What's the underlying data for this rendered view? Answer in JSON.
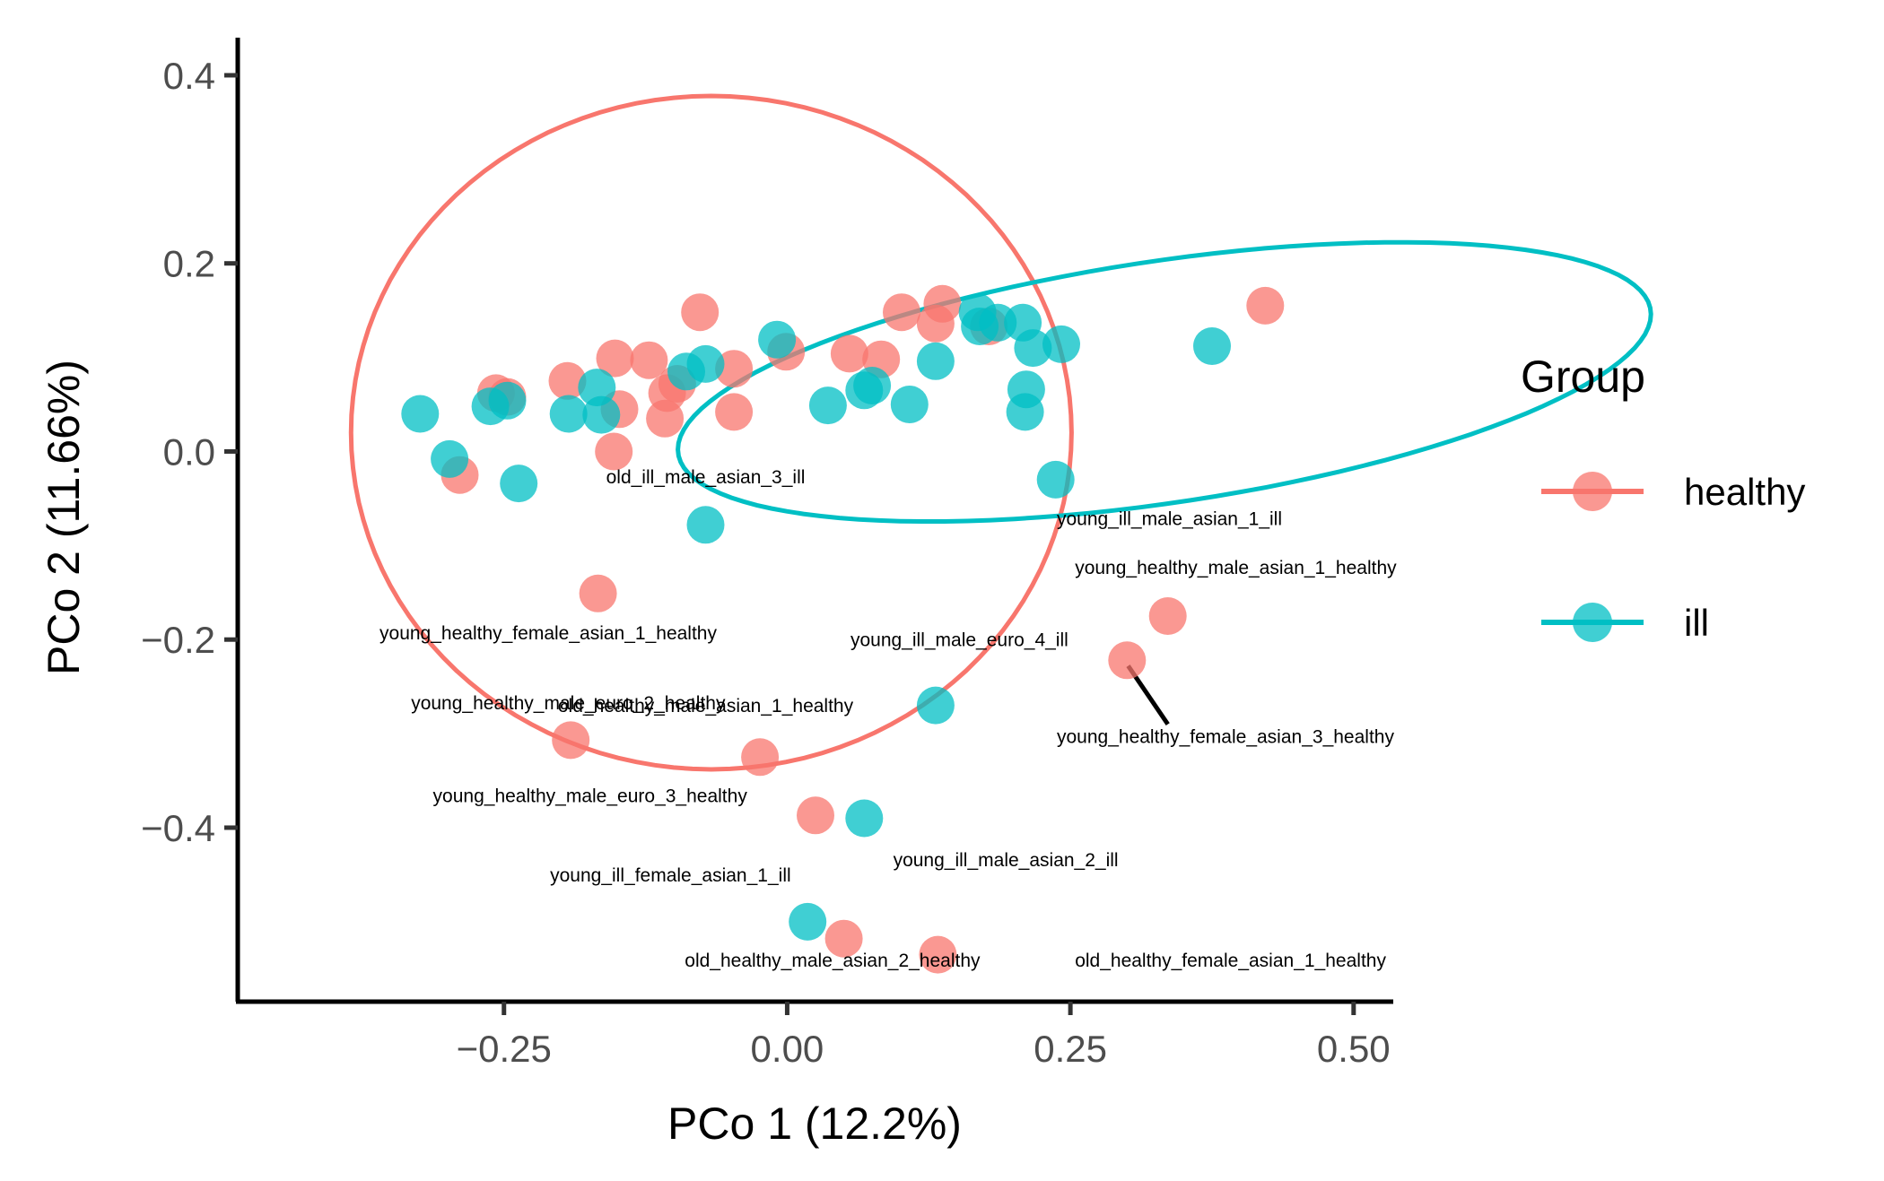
{
  "chart_data": {
    "type": "scatter",
    "title": "",
    "xlabel": "PCo 1 (12.2%)",
    "ylabel": "PCo 2 (11.66%)",
    "xlim": [
      -0.485,
      0.535
    ],
    "ylim": [
      -0.585,
      0.44
    ],
    "x_ticks": [
      {
        "value": -0.25,
        "label": "−0.25"
      },
      {
        "value": 0.0,
        "label": "0.00"
      },
      {
        "value": 0.25,
        "label": "0.25"
      },
      {
        "value": 0.5,
        "label": "0.50"
      }
    ],
    "y_ticks": [
      {
        "value": 0.4,
        "label": "0.4"
      },
      {
        "value": 0.2,
        "label": "0.2"
      },
      {
        "value": 0.0,
        "label": "0.0"
      },
      {
        "value": -0.2,
        "label": "−0.2"
      },
      {
        "value": -0.4,
        "label": "−0.4"
      }
    ],
    "grid": false,
    "legend": {
      "title": "Group",
      "position": "right",
      "entries": [
        {
          "name": "healthy",
          "color": "#F8766D"
        },
        {
          "name": "ill",
          "color": "#00BFC4"
        }
      ]
    },
    "series": [
      {
        "name": "healthy",
        "color": "#F8766D",
        "points": [
          [
            -0.257,
            0.062
          ],
          [
            -0.247,
            0.058
          ],
          [
            -0.194,
            0.075
          ],
          [
            -0.152,
            0.099
          ],
          [
            -0.148,
            0.045
          ],
          [
            -0.122,
            0.097
          ],
          [
            -0.108,
            0.035
          ],
          [
            -0.106,
            0.062
          ],
          [
            -0.097,
            0.072
          ],
          [
            -0.077,
            0.148
          ],
          [
            -0.047,
            0.088
          ],
          [
            -0.047,
            0.042
          ],
          [
            -0.153,
            0.0
          ],
          [
            -0.289,
            -0.025
          ],
          [
            -0.001,
            0.106
          ],
          [
            0.055,
            0.104
          ],
          [
            0.083,
            0.098
          ],
          [
            0.101,
            0.148
          ],
          [
            0.131,
            0.136
          ],
          [
            0.137,
            0.157
          ],
          [
            0.178,
            0.133
          ],
          [
            0.422,
            0.155
          ],
          [
            -0.167,
            -0.151
          ],
          [
            0.336,
            -0.175
          ],
          [
            0.3,
            -0.222
          ],
          [
            -0.191,
            -0.307
          ],
          [
            -0.024,
            -0.325
          ],
          [
            0.025,
            -0.387
          ],
          [
            0.05,
            -0.518
          ],
          [
            0.133,
            -0.535
          ]
        ],
        "ellipse": {
          "cx": -0.067,
          "cy": 0.02,
          "rx": 0.318,
          "ry": 0.358,
          "angle_deg": 0
        }
      },
      {
        "name": "ill",
        "color": "#00BFC4",
        "points": [
          [
            -0.324,
            0.04
          ],
          [
            -0.298,
            -0.008
          ],
          [
            -0.262,
            0.048
          ],
          [
            -0.247,
            0.054
          ],
          [
            -0.237,
            -0.034
          ],
          [
            -0.193,
            0.04
          ],
          [
            -0.168,
            0.068
          ],
          [
            -0.164,
            0.039
          ],
          [
            -0.089,
            0.085
          ],
          [
            -0.072,
            0.093
          ],
          [
            -0.009,
            0.119
          ],
          [
            0.036,
            0.049
          ],
          [
            0.068,
            0.065
          ],
          [
            0.075,
            0.07
          ],
          [
            0.108,
            0.05
          ],
          [
            0.131,
            0.096
          ],
          [
            0.168,
            0.148
          ],
          [
            0.17,
            0.133
          ],
          [
            0.186,
            0.137
          ],
          [
            0.208,
            0.137
          ],
          [
            0.211,
            0.066
          ],
          [
            0.21,
            0.042
          ],
          [
            0.217,
            0.11
          ],
          [
            0.242,
            0.114
          ],
          [
            0.375,
            0.112
          ],
          [
            0.237,
            -0.03
          ],
          [
            -0.072,
            -0.078
          ],
          [
            0.131,
            -0.27
          ],
          [
            0.068,
            -0.39
          ],
          [
            0.018,
            -0.5
          ]
        ],
        "ellipse": {
          "cx": 0.333,
          "cy": 0.074,
          "rx": 0.436,
          "ry": 0.128,
          "angle_deg": 10.4
        }
      }
    ],
    "annotations": [
      {
        "text": "old_ill_male_asian_3_ill",
        "x": -0.072,
        "y": -0.034,
        "anchor": "middle"
      },
      {
        "text": "young_ill_male_asian_1_ill",
        "x": 0.238,
        "y": -0.078,
        "anchor": "start"
      },
      {
        "text": "young_healthy_male_asian_1_healthy",
        "x": 0.254,
        "y": -0.13,
        "anchor": "start"
      },
      {
        "text": "young_healthy_female_asian_1_healthy",
        "x": -0.211,
        "y": -0.2,
        "anchor": "middle"
      },
      {
        "text": "young_ill_male_euro_4_ill",
        "x": 0.152,
        "y": -0.207,
        "anchor": "middle"
      },
      {
        "text": "young_healthy_male_euro_2_healthy",
        "x": -0.332,
        "y": -0.274,
        "anchor": "start"
      },
      {
        "text": "old_healthy_male_asian_1_healthy",
        "x": -0.072,
        "y": -0.277,
        "anchor": "middle"
      },
      {
        "text": "young_healthy_female_asian_3_healthy",
        "x": 0.238,
        "y": -0.31,
        "anchor": "start"
      },
      {
        "text": "young_healthy_male_euro_3_healthy",
        "x": -0.174,
        "y": -0.373,
        "anchor": "middle"
      },
      {
        "text": "young_ill_male_asian_2_ill",
        "x": 0.193,
        "y": -0.441,
        "anchor": "middle"
      },
      {
        "text": "young_ill_female_asian_1_ill",
        "x": -0.103,
        "y": -0.457,
        "anchor": "middle"
      },
      {
        "text": "old_healthy_male_asian_2_healthy",
        "x": 0.04,
        "y": -0.548,
        "anchor": "middle"
      },
      {
        "text": "old_healthy_female_asian_1_healthy",
        "x": 0.254,
        "y": -0.548,
        "anchor": "start"
      }
    ],
    "segments": [
      {
        "from": [
          0.301,
          -0.228
        ],
        "to": [
          0.336,
          -0.29
        ],
        "color": "#000000"
      }
    ]
  }
}
